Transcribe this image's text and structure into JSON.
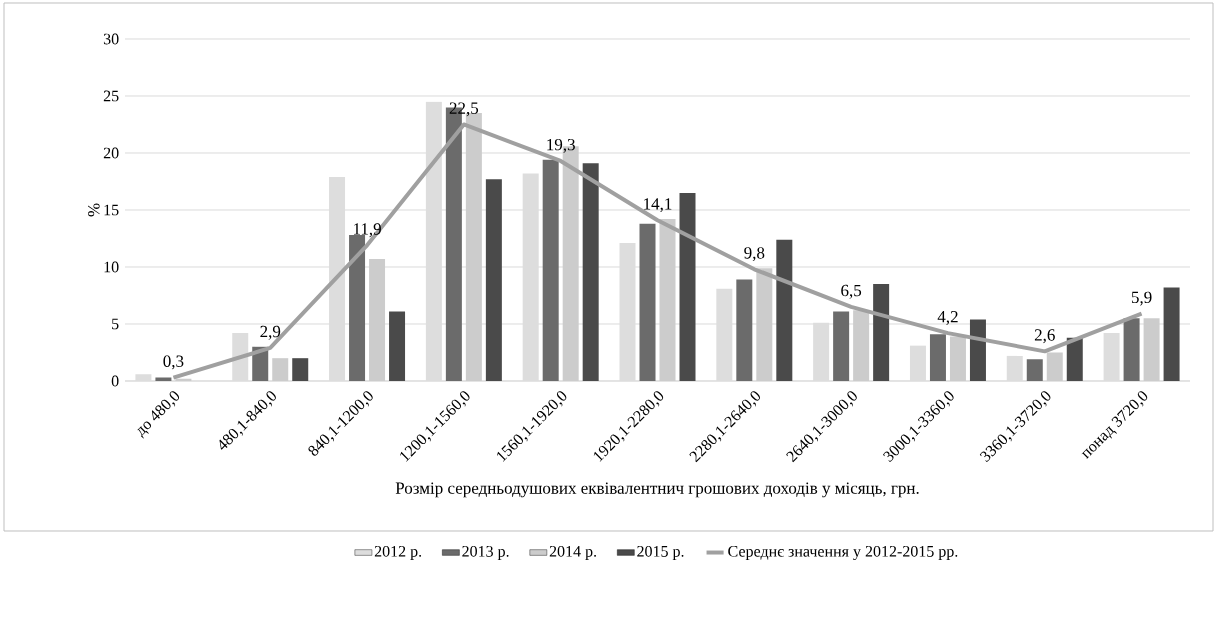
{
  "chart_data": {
    "type": "bar",
    "xlabel": "Розмір середньодушових еквівалентнич грошових доходів у місяць, грн.",
    "ylabel": "%",
    "categories": [
      "до 480,0",
      "480,1-840,0",
      "840,1-1200,0",
      "1200,1-1560,0",
      "1560,1-1920,0",
      "1920,1-2280,0",
      "2280,1-2640,0",
      "2640,1-3000,0",
      "3000,1-3360,0",
      "3360,1-3720,0",
      "понад 3720,0"
    ],
    "series": [
      {
        "name": "2012 р.",
        "color": "#dddddd",
        "values": [
          0.6,
          4.2,
          17.9,
          24.5,
          18.2,
          12.1,
          8.1,
          5.1,
          3.1,
          2.2,
          4.2
        ]
      },
      {
        "name": "2013 р.",
        "color": "#6b6b6b",
        "values": [
          0.3,
          3.0,
          12.8,
          24.0,
          19.4,
          13.8,
          8.9,
          6.1,
          4.1,
          1.9,
          5.5
        ]
      },
      {
        "name": "2014 р.",
        "color": "#cccccc",
        "values": [
          0.2,
          2.0,
          10.7,
          23.5,
          20.6,
          14.2,
          9.9,
          6.2,
          3.9,
          2.5,
          5.5
        ]
      },
      {
        "name": "2015 р.",
        "color": "#4a4a4a",
        "values": [
          0.0,
          2.0,
          6.1,
          17.7,
          19.1,
          16.5,
          12.4,
          8.5,
          5.4,
          3.8,
          8.2
        ]
      },
      {
        "name": "Середнє значення у 2012-2015 рр.",
        "type": "line",
        "color": "#a0a0a0",
        "values": [
          0.3,
          2.9,
          11.9,
          22.5,
          19.3,
          14.1,
          9.8,
          6.5,
          4.2,
          2.6,
          5.9
        ],
        "value_labels": [
          "0,3",
          "2,9",
          "11,9",
          "22,5",
          "19,3",
          "14,1",
          "9,8",
          "6,5",
          "4,2",
          "2,6",
          "5,9"
        ]
      }
    ],
    "ylim": [
      0,
      30
    ],
    "yticks": [
      0,
      5,
      10,
      15,
      20,
      25,
      30
    ],
    "grid": "y",
    "legend": "bottom"
  }
}
